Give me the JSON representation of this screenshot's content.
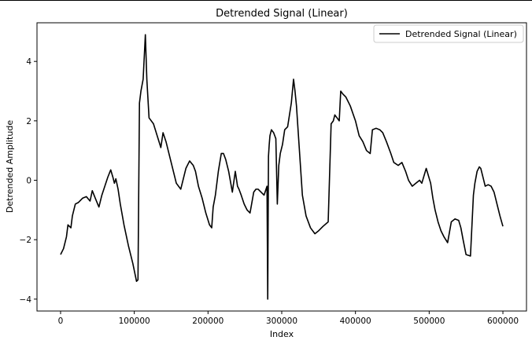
{
  "chart_data": {
    "type": "line",
    "title": "Detrended Signal (Linear)",
    "xlabel": "Index",
    "ylabel": "Detrended Amplitude",
    "xlim": [
      -32000,
      632000
    ],
    "ylim": [
      -4.4,
      5.3
    ],
    "xticks": [
      0,
      100000,
      200000,
      300000,
      400000,
      500000,
      600000
    ],
    "xtick_labels": [
      "0",
      "100000",
      "200000",
      "300000",
      "400000",
      "500000",
      "600000"
    ],
    "yticks": [
      -4,
      -2,
      0,
      2,
      4
    ],
    "ytick_labels": [
      "−4",
      "−2",
      "0",
      "2",
      "4"
    ],
    "grid": false,
    "legend_position": "top-right",
    "series": [
      {
        "name": "Detrended Signal (Linear)",
        "color": "#000000",
        "x": [
          0,
          4000,
          8000,
          10000,
          14000,
          16000,
          20000,
          24000,
          30000,
          35000,
          40000,
          43000,
          47000,
          52000,
          56000,
          60000,
          64000,
          68000,
          71000,
          73000,
          75000,
          78000,
          81000,
          86000,
          92000,
          98000,
          103000,
          105000,
          107000,
          109000,
          112000,
          115000,
          117000,
          120000,
          126000,
          131000,
          136000,
          139000,
          143000,
          150000,
          157000,
          163000,
          170000,
          175000,
          180000,
          183000,
          187000,
          192000,
          197000,
          202000,
          205000,
          207000,
          210000,
          214000,
          218000,
          221000,
          224000,
          228000,
          233000,
          237000,
          240000,
          242000,
          245000,
          249000,
          253000,
          257000,
          262000,
          265000,
          268000,
          272000,
          276000,
          280000,
          281000,
          282000,
          283000,
          284000,
          286000,
          289000,
          292000,
          294000,
          296000,
          298000,
          301000,
          304000,
          308000,
          313000,
          316000,
          318000,
          320000,
          324000,
          328000,
          333000,
          339000,
          345000,
          350000,
          356000,
          363000,
          367000,
          370000,
          372000,
          375000,
          378000,
          380000,
          383000,
          387000,
          393000,
          400000,
          405000,
          410000,
          415000,
          420000,
          423000,
          428000,
          433000,
          437000,
          442000,
          448000,
          452000,
          458000,
          463000,
          468000,
          472000,
          477000,
          482000,
          487000,
          490000,
          496000,
          502000,
          505000,
          508000,
          512000,
          516000,
          520000,
          525000,
          530000,
          535000,
          540000,
          543000,
          546000,
          550000,
          556000,
          560000,
          562000,
          565000,
          568000,
          570000,
          573000,
          576000,
          580000,
          584000,
          588000,
          592000,
          596000,
          600000
        ],
        "y": [
          -2.5,
          -2.3,
          -1.9,
          -1.5,
          -1.6,
          -1.2,
          -0.8,
          -0.75,
          -0.6,
          -0.55,
          -0.7,
          -0.35,
          -0.6,
          -0.9,
          -0.5,
          -0.2,
          0.1,
          0.35,
          0.1,
          -0.1,
          0.05,
          -0.3,
          -0.8,
          -1.5,
          -2.2,
          -2.8,
          -3.4,
          -3.35,
          2.6,
          3.0,
          3.4,
          4.9,
          3.4,
          2.1,
          1.9,
          1.5,
          1.1,
          1.6,
          1.3,
          0.6,
          -0.1,
          -0.3,
          0.4,
          0.65,
          0.5,
          0.3,
          -0.2,
          -0.6,
          -1.1,
          -1.5,
          -1.6,
          -0.9,
          -0.5,
          0.3,
          0.9,
          0.9,
          0.7,
          0.3,
          -0.4,
          0.3,
          -0.2,
          -0.3,
          -0.5,
          -0.8,
          -1.0,
          -1.1,
          -0.4,
          -0.3,
          -0.3,
          -0.4,
          -0.5,
          -0.2,
          -4.0,
          0.8,
          1.2,
          1.5,
          1.7,
          1.6,
          1.4,
          -0.8,
          0.5,
          0.9,
          1.2,
          1.7,
          1.8,
          2.6,
          3.4,
          3.0,
          2.5,
          1.0,
          -0.5,
          -1.2,
          -1.6,
          -1.8,
          -1.7,
          -1.55,
          -1.4,
          1.9,
          2.0,
          2.2,
          2.1,
          2.0,
          3.0,
          2.9,
          2.8,
          2.5,
          2.0,
          1.5,
          1.3,
          1.0,
          0.9,
          1.7,
          1.75,
          1.7,
          1.6,
          1.3,
          0.9,
          0.6,
          0.5,
          0.6,
          0.3,
          0.0,
          -0.2,
          -0.1,
          0.0,
          -0.1,
          0.4,
          -0.1,
          -0.6,
          -1.0,
          -1.4,
          -1.7,
          -1.9,
          -2.1,
          -1.4,
          -1.3,
          -1.35,
          -1.6,
          -2.0,
          -2.5,
          -2.55,
          -0.5,
          -0.1,
          0.3,
          0.45,
          0.4,
          0.1,
          -0.2,
          -0.15,
          -0.2,
          -0.4,
          -0.8,
          -1.2,
          -1.55
        ]
      }
    ]
  }
}
